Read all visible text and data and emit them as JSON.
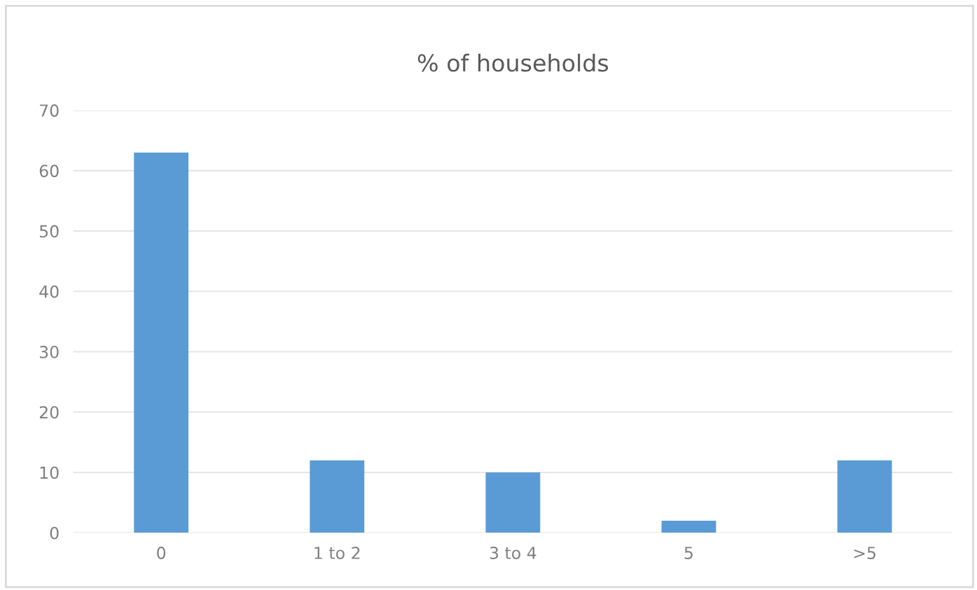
{
  "chart_data": {
    "type": "bar",
    "title": "% of households",
    "categories": [
      "0",
      "1 to 2",
      "3 to 4",
      "5",
      ">5"
    ],
    "values": [
      63,
      12,
      10,
      2,
      12
    ],
    "color": "#5b9bd5",
    "ylim": [
      0,
      70
    ],
    "yticks": [
      0,
      10,
      20,
      30,
      40,
      50,
      60,
      70
    ],
    "grid": "y",
    "legend": false
  }
}
